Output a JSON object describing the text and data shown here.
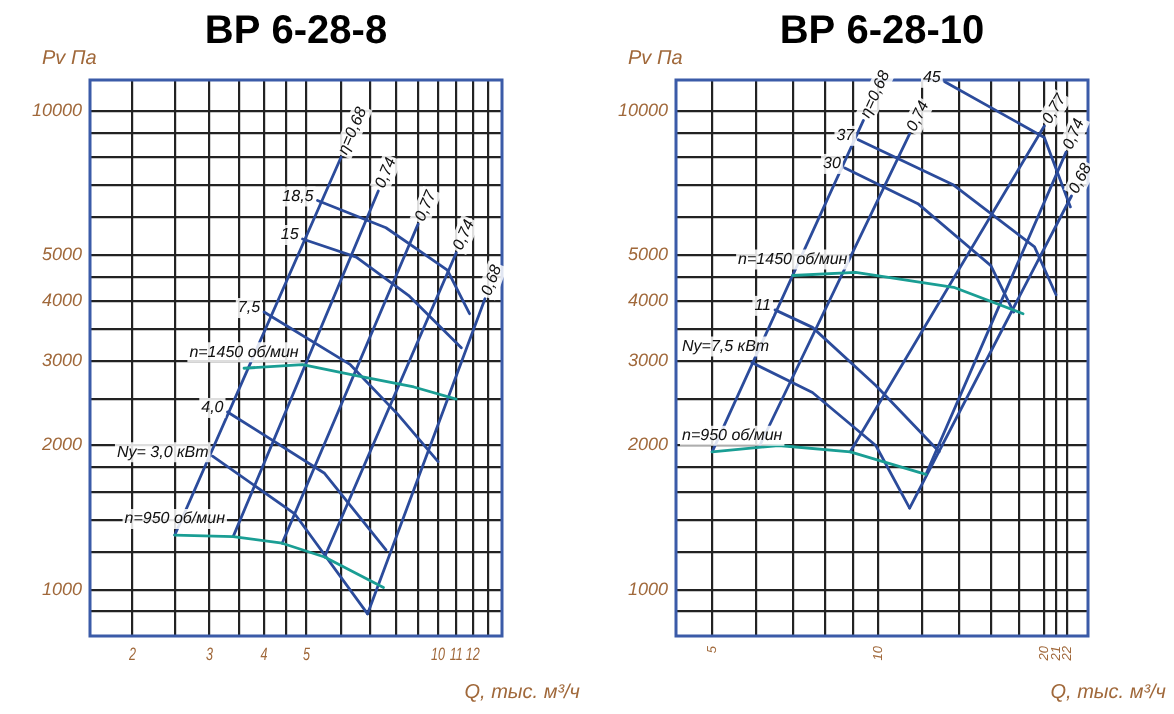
{
  "chart_data": [
    {
      "type": "line",
      "title": "ВР 6-28-8",
      "xlabel": "Q, тыс. м³/ч",
      "ylabel": "Pv Па",
      "log": "xy",
      "grid": true,
      "legend": false,
      "marker": "none",
      "xlim": [
        1.6,
        14
      ],
      "ylim": [
        800,
        11600
      ],
      "xticks": [
        2,
        {
          "value": 2.5,
          "label": null
        },
        3,
        {
          "value": 3.5,
          "label": null
        },
        4,
        {
          "value": 4.5,
          "label": null
        },
        5,
        {
          "value": 6,
          "label": null
        },
        {
          "value": 7,
          "label": null
        },
        {
          "value": 8,
          "label": null
        },
        {
          "value": 9,
          "label": null
        },
        10,
        11,
        12,
        {
          "value": 13,
          "label": null
        }
      ],
      "yticks": [
        {
          "value": 900,
          "label": null
        },
        1000,
        {
          "value": 1200,
          "label": null
        },
        {
          "value": 1400,
          "label": null
        },
        {
          "value": 1600,
          "label": null
        },
        {
          "value": 1800,
          "label": null
        },
        2000,
        {
          "value": 2500,
          "label": null
        },
        3000,
        {
          "value": 3500,
          "label": null
        },
        4000,
        {
          "value": 4500,
          "label": null
        },
        5000,
        {
          "value": 6000,
          "label": null
        },
        {
          "value": 7000,
          "label": null
        },
        {
          "value": 8000,
          "label": null
        },
        {
          "value": 9000,
          "label": null
        },
        10000
      ],
      "series": [
        {
          "name": "n=1450 об/мин",
          "color": "#1a9e94",
          "x": [
            3.6,
            4.9,
            6.5,
            8.8,
            11
          ],
          "values": [
            2900,
            2950,
            2800,
            2650,
            2500
          ]
        },
        {
          "name": "n=950 об/мин",
          "color": "#1a9e94",
          "x": [
            2.5,
            3.4,
            4.4,
            5.5,
            7.5
          ],
          "values": [
            1300,
            1290,
            1250,
            1170,
            1010
          ]
        },
        {
          "name": "18,5",
          "color": "#2b4b9b",
          "x": [
            5.3,
            7.6,
            10.5,
            11.8
          ],
          "values": [
            6500,
            5700,
            4650,
            3770
          ]
        },
        {
          "name": "15",
          "color": "#2b4b9b",
          "x": [
            4.9,
            6.5,
            8.6,
            11.3
          ],
          "values": [
            5400,
            4950,
            4100,
            3200
          ]
        },
        {
          "name": "7,5",
          "color": "#2b4b9b",
          "x": [
            4.0,
            6.3,
            8.1,
            10
          ],
          "values": [
            3800,
            2950,
            2320,
            1850
          ]
        },
        {
          "name": "4,0",
          "color": "#2b4b9b",
          "x": [
            3.3,
            5.5,
            7.6
          ],
          "values": [
            2350,
            1750,
            1210
          ]
        },
        {
          "name": "Ny= 3,0 кВт",
          "color": "#2b4b9b",
          "x": [
            3.05,
            4.7,
            6.9
          ],
          "values": [
            1900,
            1440,
            890
          ]
        },
        {
          "name": "η=0,68",
          "color": "#2b4b9b",
          "x": [
            2.5,
            6.0
          ],
          "values": [
            1300,
            8000
          ]
        },
        {
          "name": "0,74",
          "color": "#2b4b9b",
          "x": [
            3.4,
            7.3
          ],
          "values": [
            1290,
            6800
          ]
        },
        {
          "name": "0,77",
          "color": "#2b4b9b",
          "x": [
            4.4,
            9.0
          ],
          "values": [
            1250,
            5800
          ]
        },
        {
          "name": "0,74",
          "color": "#2b4b9b",
          "x": [
            5.5,
            11
          ],
          "values": [
            1170,
            5050
          ]
        },
        {
          "name": "0,68",
          "color": "#2b4b9b",
          "x": [
            6.9,
            12.8
          ],
          "values": [
            890,
            4050
          ]
        }
      ]
    },
    {
      "type": "line",
      "title": "ВР 6-28-10",
      "xlabel": "Q, тыс. м³/ч",
      "ylabel": "Pv Па",
      "log": "xy",
      "grid": true,
      "legend": false,
      "marker": "none",
      "xlim": [
        4.3,
        24
      ],
      "ylim": [
        800,
        11600
      ],
      "xticks": [
        5,
        {
          "value": 6,
          "label": null
        },
        {
          "value": 7,
          "label": null
        },
        {
          "value": 8,
          "label": null
        },
        {
          "value": 9,
          "label": null
        },
        10,
        {
          "value": 12,
          "label": null
        },
        {
          "value": 14,
          "label": null
        },
        {
          "value": 16,
          "label": null
        },
        {
          "value": 18,
          "label": null
        },
        20,
        21,
        22
      ],
      "yticks": [
        {
          "value": 900,
          "label": null
        },
        1000,
        {
          "value": 1200,
          "label": null
        },
        {
          "value": 1400,
          "label": null
        },
        {
          "value": 1600,
          "label": null
        },
        {
          "value": 1800,
          "label": null
        },
        2000,
        {
          "value": 2500,
          "label": null
        },
        3000,
        {
          "value": 3500,
          "label": null
        },
        4000,
        {
          "value": 4500,
          "label": null
        },
        5000,
        {
          "value": 6000,
          "label": null
        },
        {
          "value": 7000,
          "label": null
        },
        {
          "value": 8000,
          "label": null
        },
        {
          "value": 9000,
          "label": null
        },
        10000
      ],
      "series": [
        {
          "name": "n=1450 об/мин",
          "color": "#1a9e94",
          "x": [
            7.0,
            9.1,
            13.7,
            18.3
          ],
          "values": [
            4530,
            4600,
            4280,
            3770
          ]
        },
        {
          "name": "n=950 об/мин",
          "color": "#1a9e94",
          "x": [
            5.0,
            6.6,
            8.9,
            12.2
          ],
          "values": [
            1940,
            2000,
            1940,
            1740
          ]
        },
        {
          "name": "45",
          "color": "#2b4b9b",
          "x": [
            13.2,
            20,
            22.3
          ],
          "values": [
            11500,
            8800,
            6300
          ]
        },
        {
          "name": "37",
          "color": "#2b4b9b",
          "x": [
            9.2,
            13.7,
            19.2,
            21
          ],
          "values": [
            8700,
            7000,
            5200,
            4130
          ]
        },
        {
          "name": "30",
          "color": "#2b4b9b",
          "x": [
            8.7,
            11.8,
            16,
            17.6
          ],
          "values": [
            7600,
            6400,
            4750,
            3800
          ]
        },
        {
          "name": "11",
          "color": "#2b4b9b",
          "x": [
            6.5,
            7.6,
            9.9,
            12.9
          ],
          "values": [
            3840,
            3530,
            2670,
            1940
          ]
        },
        {
          "name": "Ny=7,5 кВт",
          "color": "#2b4b9b",
          "x": [
            5.9,
            7.6,
            9.9,
            11.4
          ],
          "values": [
            2980,
            2580,
            2000,
            1480
          ]
        },
        {
          "name": "η=0,68",
          "color": "#2b4b9b",
          "x": [
            5.0,
            9.4
          ],
          "values": [
            1940,
            9550
          ]
        },
        {
          "name": "0,74",
          "color": "#2b4b9b",
          "x": [
            6.1,
            11.4
          ],
          "values": [
            2000,
            8950
          ]
        },
        {
          "name": "0,77",
          "color": "#2b4b9b",
          "x": [
            8.9,
            20
          ],
          "values": [
            1940,
            9300
          ]
        },
        {
          "name": "0,74",
          "color": "#2b4b9b",
          "x": [
            12.2,
            21.9
          ],
          "values": [
            1740,
            8200
          ]
        },
        {
          "name": "0,68",
          "color": "#2b4b9b",
          "x": [
            11.4,
            22.4
          ],
          "values": [
            1480,
            6640
          ]
        }
      ]
    }
  ]
}
